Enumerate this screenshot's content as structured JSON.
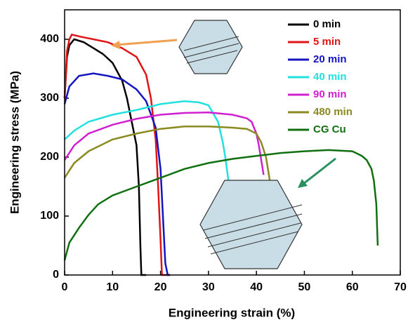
{
  "chart_data": {
    "type": "line",
    "x_label": "Engineering strain (%)",
    "y_label": "Engineering stress (MPa)",
    "xlim": [
      0,
      70
    ],
    "ylim": [
      0,
      450
    ],
    "xticks": [
      0,
      10,
      20,
      30,
      40,
      50,
      60,
      70
    ],
    "yticks": [
      0,
      100,
      200,
      300,
      400
    ],
    "legend": "top-right",
    "series": [
      {
        "name": "0 min",
        "color": "#000000",
        "x": [
          0,
          0.5,
          1,
          2,
          4,
          6,
          8,
          10,
          12,
          13,
          14,
          15,
          15.5,
          15.8,
          16,
          17
        ],
        "values": [
          300,
          370,
          390,
          400,
          395,
          385,
          375,
          360,
          330,
          300,
          260,
          220,
          150,
          50,
          0,
          0
        ]
      },
      {
        "name": "5 min",
        "color": "#e01414",
        "x": [
          0,
          0.5,
          1,
          1.5,
          3,
          6,
          9,
          12,
          15,
          17,
          18,
          19,
          19.5,
          20,
          20.3,
          21,
          22
        ],
        "values": [
          300,
          380,
          400,
          408,
          405,
          400,
          395,
          385,
          370,
          340,
          300,
          230,
          150,
          60,
          0,
          0,
          0
        ]
      },
      {
        "name": "20 min",
        "color": "#1414c0",
        "x": [
          0,
          1,
          3,
          6,
          9,
          12,
          15,
          17,
          19,
          20,
          20.5,
          21,
          21.5,
          22
        ],
        "values": [
          290,
          320,
          338,
          342,
          338,
          332,
          315,
          295,
          250,
          180,
          100,
          20,
          0,
          0
        ]
      },
      {
        "name": "40 min",
        "color": "#22e0e0",
        "x": [
          0,
          2,
          5,
          10,
          15,
          20,
          25,
          28,
          30,
          32,
          33,
          33.5,
          34.5
        ],
        "values": [
          230,
          245,
          260,
          272,
          280,
          290,
          295,
          293,
          288,
          260,
          225,
          200,
          140
        ]
      },
      {
        "name": "90 min",
        "color": "#d020d0",
        "x": [
          0,
          2,
          5,
          10,
          15,
          20,
          25,
          30,
          35,
          38,
          39,
          40,
          40.5,
          41.5
        ],
        "values": [
          195,
          220,
          240,
          255,
          265,
          272,
          275,
          276,
          272,
          266,
          260,
          240,
          220,
          170
        ]
      },
      {
        "name": "480 min",
        "color": "#8a8a20",
        "x": [
          0,
          2,
          5,
          10,
          15,
          20,
          25,
          30,
          35,
          38,
          40,
          41,
          42,
          43
        ],
        "values": [
          165,
          190,
          210,
          230,
          240,
          248,
          252,
          252,
          250,
          248,
          240,
          225,
          200,
          150
        ]
      },
      {
        "name": "CG Cu",
        "color": "#107010",
        "x": [
          0,
          1,
          3,
          5,
          7,
          10,
          15,
          20,
          25,
          30,
          35,
          40,
          45,
          50,
          55,
          60,
          62,
          63,
          64,
          64.5,
          65,
          65.3
        ],
        "values": [
          25,
          55,
          80,
          102,
          120,
          135,
          150,
          165,
          180,
          190,
          197,
          202,
          207,
          210,
          212,
          210,
          202,
          195,
          180,
          160,
          120,
          50
        ]
      }
    ]
  }
}
